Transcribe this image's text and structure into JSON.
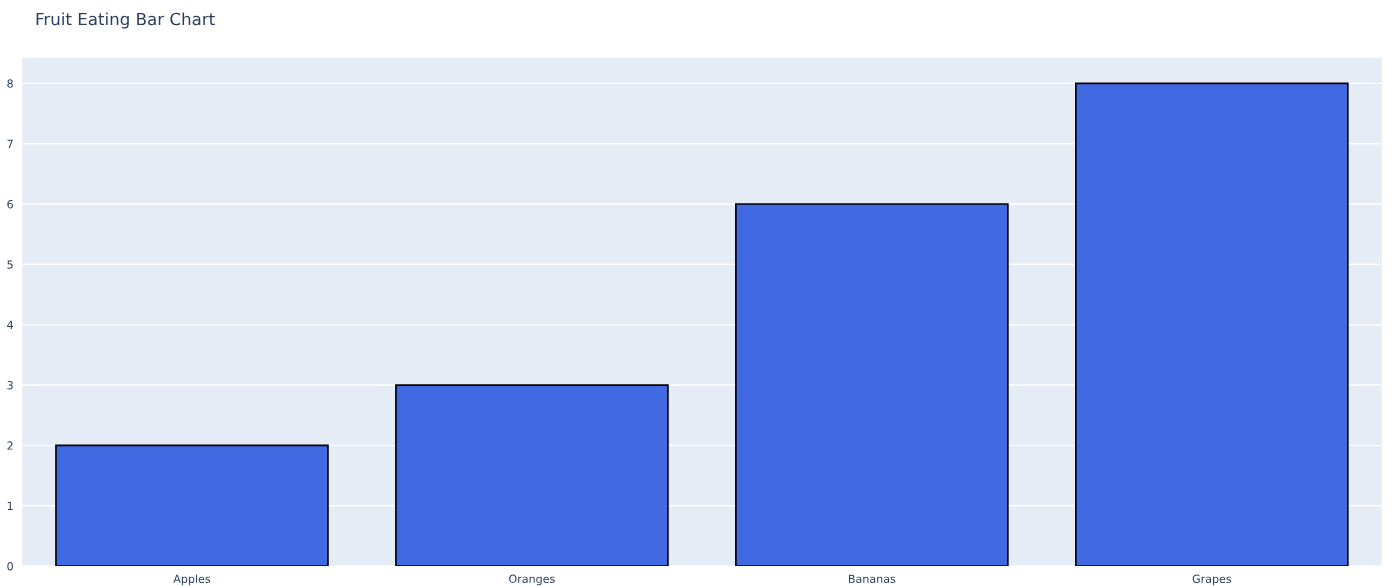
{
  "chart_data": {
    "type": "bar",
    "title": "Fruit Eating Bar Chart",
    "categories": [
      "Apples",
      "Oranges",
      "Bananas",
      "Grapes"
    ],
    "values": [
      2,
      3,
      6,
      8
    ],
    "color": "#4169e1",
    "ylim": [
      0,
      8.42
    ],
    "yticks": [
      0,
      1,
      2,
      3,
      4,
      5,
      6,
      7,
      8
    ],
    "grid": "y"
  }
}
